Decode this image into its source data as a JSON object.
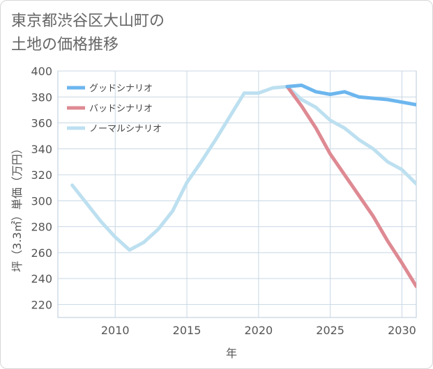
{
  "title": "東京都渋谷区大山町の\n土地の価格推移",
  "chart_data": {
    "type": "line",
    "title": "東京都渋谷区大山町の土地の価格推移",
    "xlabel": "年",
    "ylabel": "坪（3.3㎡）単価（万円）",
    "xlim": [
      2006,
      2031
    ],
    "ylim": [
      210,
      400
    ],
    "xticks": [
      2010,
      2015,
      2020,
      2025,
      2030
    ],
    "yticks": [
      220,
      240,
      260,
      280,
      300,
      320,
      340,
      360,
      380,
      400
    ],
    "grid": true,
    "legend_position": "top-left",
    "series": [
      {
        "name": "グッドシナリオ",
        "color": "#6cb6ee",
        "x": [
          2022,
          2023,
          2024,
          2025,
          2026,
          2027,
          2028,
          2029,
          2030,
          2031
        ],
        "y": [
          388,
          389,
          384,
          382,
          384,
          380,
          379,
          378,
          376,
          374
        ]
      },
      {
        "name": "バッドシナリオ",
        "color": "#de8a93",
        "x": [
          2022,
          2023,
          2024,
          2025,
          2026,
          2027,
          2028,
          2029,
          2030,
          2031
        ],
        "y": [
          388,
          373,
          356,
          336,
          320,
          304,
          288,
          269,
          252,
          234
        ]
      },
      {
        "name": "ノーマルシナリオ",
        "color": "#bde0f0",
        "x": [
          2007,
          2008,
          2009,
          2010,
          2011,
          2012,
          2013,
          2014,
          2015,
          2016,
          2017,
          2018,
          2019,
          2020,
          2021,
          2022,
          2023,
          2024,
          2025,
          2026,
          2027,
          2028,
          2029,
          2030,
          2031
        ],
        "y": [
          312,
          298,
          284,
          272,
          262,
          268,
          278,
          292,
          314,
          330,
          347,
          365,
          383,
          383,
          387,
          388,
          378,
          372,
          362,
          356,
          347,
          340,
          330,
          324,
          313
        ]
      }
    ]
  }
}
